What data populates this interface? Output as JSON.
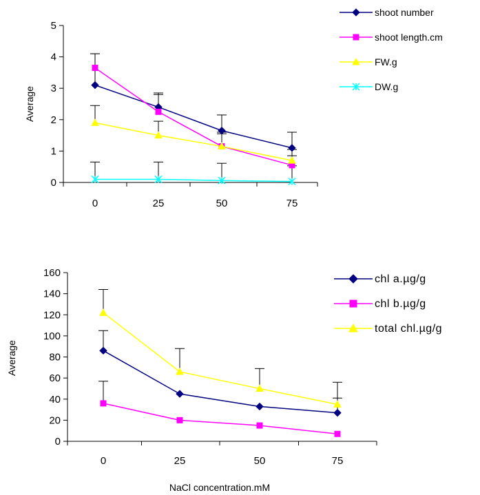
{
  "chart_data": [
    {
      "type": "line",
      "title": "",
      "xlabel": "",
      "ylabel": "Average",
      "categories": [
        "0",
        "25",
        "50",
        "75"
      ],
      "ylim": [
        0,
        5
      ],
      "yticks": [
        "0",
        "1",
        "2",
        "3",
        "4",
        "5"
      ],
      "error_bars": "upper, positive",
      "legend_position": "right",
      "grid": false,
      "series": [
        {
          "name": "shoot number",
          "color": "#000080",
          "marker": "diamond",
          "values": [
            3.1,
            2.4,
            1.65,
            1.1
          ],
          "errors": [
            1.0,
            0.45,
            0.5,
            0.5
          ]
        },
        {
          "name": "shoot length.cm",
          "color": "#ff00ff",
          "marker": "square",
          "values": [
            3.65,
            2.25,
            1.15,
            0.55
          ],
          "errors": [
            0.45,
            0.55,
            0.45,
            0.3
          ]
        },
        {
          "name": "FW.g",
          "color": "#ffff00",
          "marker": "triangle",
          "values": [
            1.9,
            1.5,
            1.15,
            0.7
          ],
          "errors": [
            0.55,
            0.45,
            0.4,
            0.35
          ]
        },
        {
          "name": "DW.g",
          "color": "#00ffff",
          "marker": "star",
          "values": [
            0.1,
            0.1,
            0.06,
            0.03
          ],
          "errors": [
            0.55,
            0.55,
            0.55,
            0.5
          ]
        }
      ]
    },
    {
      "type": "line",
      "title": "",
      "xlabel": "NaCl concentration.mM",
      "ylabel": "Average",
      "categories": [
        "0",
        "25",
        "50",
        "75"
      ],
      "ylim": [
        0,
        160
      ],
      "yticks": [
        "0",
        "20",
        "40",
        "60",
        "80",
        "100",
        "120",
        "140",
        "160"
      ],
      "error_bars": "upper, positive",
      "legend_position": "right",
      "grid": false,
      "series": [
        {
          "name": "chl a.µg/g",
          "color": "#000080",
          "marker": "diamond",
          "values": [
            86,
            45,
            33,
            27
          ],
          "errors": [
            19,
            0,
            0,
            14
          ]
        },
        {
          "name": "chl b.µg/g",
          "color": "#ff00ff",
          "marker": "square",
          "values": [
            36,
            20,
            15,
            7
          ],
          "errors": [
            21,
            0,
            0,
            0
          ]
        },
        {
          "name": "total chl.µg/g",
          "color": "#ffff00",
          "marker": "triangle",
          "values": [
            122,
            66,
            50,
            35
          ],
          "errors": [
            22,
            22,
            19,
            21
          ]
        }
      ]
    }
  ]
}
